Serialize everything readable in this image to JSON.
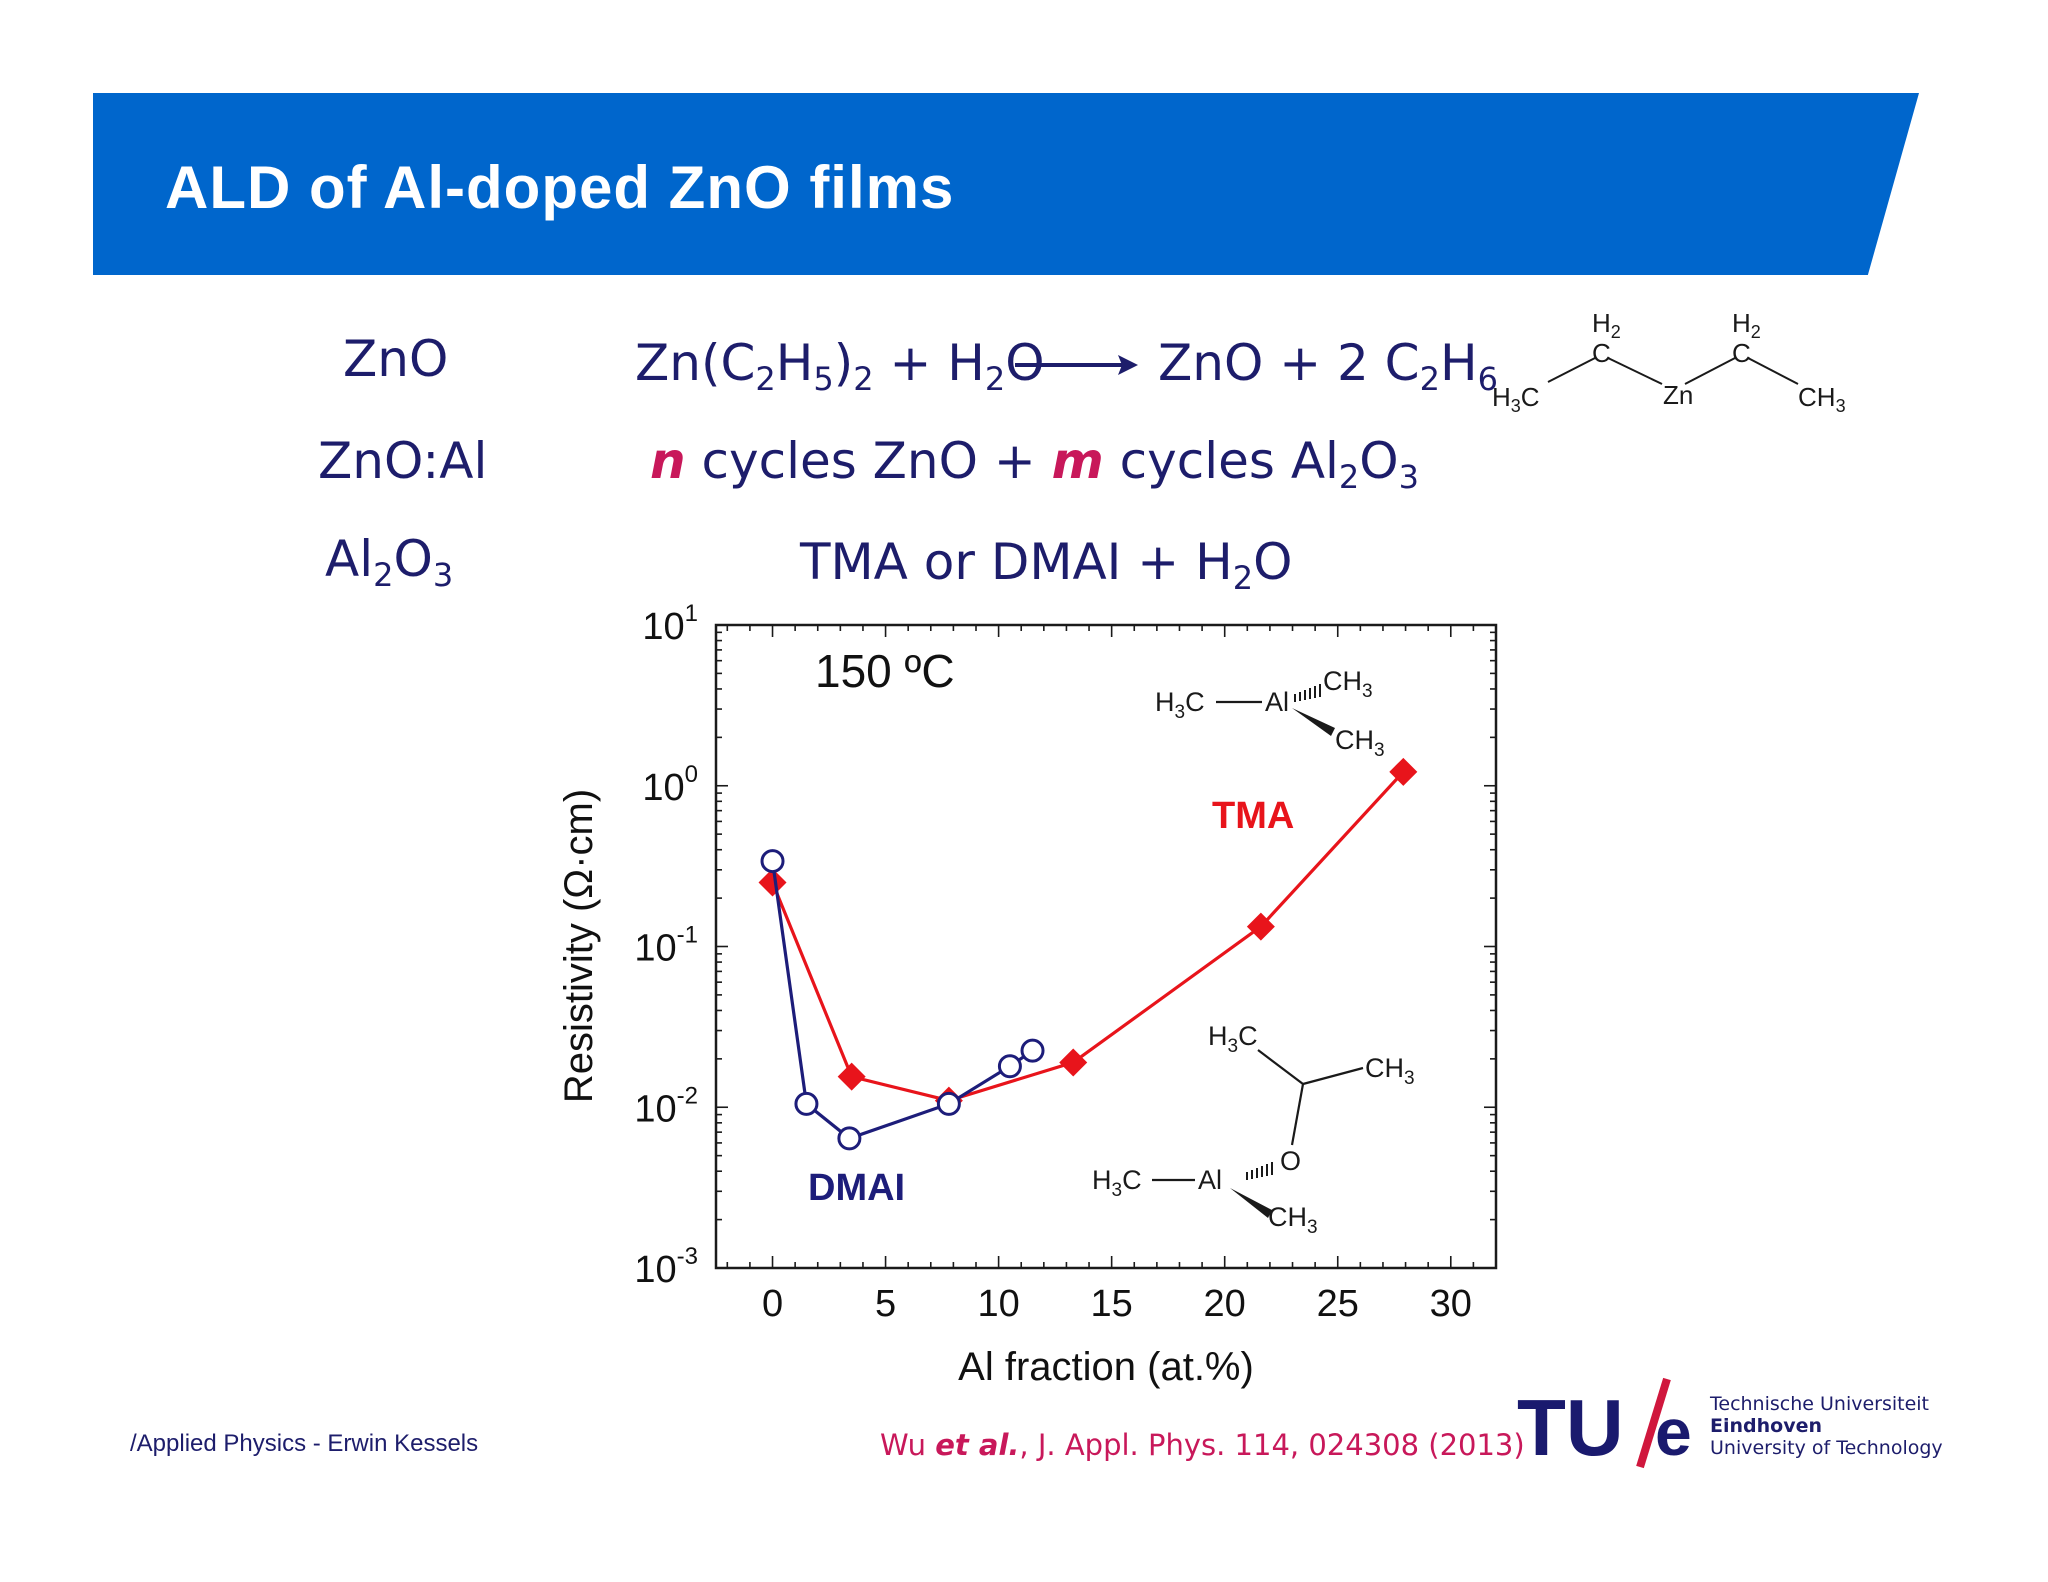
{
  "slide": {
    "title": "ALD of Al-doped ZnO films",
    "row_labels": [
      "ZnO",
      "ZnO:Al",
      "Al2O3"
    ],
    "reaction_zno": {
      "lhs_a": "Zn(C",
      "lhs_b": "H",
      "lhs_c": ")",
      "lhs_d": " + H",
      "lhs_e": "O",
      "rhs_a": "ZnO + 2 C",
      "rhs_b": "H"
    },
    "reaction_znoal": {
      "n": "n",
      "mid": " cycles ZnO + ",
      "m": "m",
      "end": " cycles Al",
      "o": "O"
    },
    "reaction_al2o3": {
      "a": "TMA  or DMAI + H",
      "b": "O"
    },
    "molecule_zn": {
      "h2_left": "H2",
      "h2_right": "H2",
      "c": "C",
      "zn": "Zn",
      "h3c": "H3C",
      "ch3": "CH3"
    },
    "footer": "/Applied Physics - Erwin Kessels",
    "reference": {
      "a": "Wu ",
      "b": "et al.",
      "c": ", J. Appl. Phys. 114, 024308 (2013)"
    },
    "logo": {
      "mark_a": "TU",
      "mark_b": "e",
      "line1": "Technische Universiteit",
      "line2": "Eindhoven",
      "line3": "University of Technology"
    }
  },
  "chart_data": {
    "type": "line",
    "annotation_temp": "150 ºC",
    "xlabel": "Al fraction (at.%)",
    "ylabel": "Resistivity  (Ω·cm)",
    "xlim": [
      -2.5,
      32
    ],
    "ylim_log10": [
      -3,
      1
    ],
    "yscale": "log",
    "x_ticks": [
      0,
      5,
      10,
      15,
      20,
      25,
      30
    ],
    "y_ticks": [
      {
        "base": "10",
        "exp": "1"
      },
      {
        "base": "10",
        "exp": "0"
      },
      {
        "base": "10",
        "exp": "-1"
      },
      {
        "base": "10",
        "exp": "-2"
      },
      {
        "base": "10",
        "exp": "-3"
      }
    ],
    "series": [
      {
        "name": "TMA",
        "color": "#e8141b",
        "marker": "diamond",
        "x": [
          0,
          3.5,
          7.8,
          13.3,
          21.6,
          27.9
        ],
        "y": [
          0.25,
          0.0155,
          0.011,
          0.019,
          0.133,
          1.22
        ]
      },
      {
        "name": "DMAI",
        "color": "#1d1d7a",
        "marker": "open-circle",
        "x": [
          0,
          1.5,
          3.4,
          7.8,
          10.5,
          11.5
        ],
        "y": [
          0.34,
          0.0105,
          0.0064,
          0.0105,
          0.018,
          0.0225
        ]
      }
    ],
    "molecule_tma": {
      "h3c": "H3C",
      "al": "Al",
      "ch3a": "CH3",
      "ch3b": "CH3"
    },
    "molecule_dmai": {
      "h3c_top": "H3C",
      "ch3_right": "CH3",
      "o": "O",
      "h3c": "H3C",
      "al": "Al",
      "ch3": "CH3"
    }
  }
}
